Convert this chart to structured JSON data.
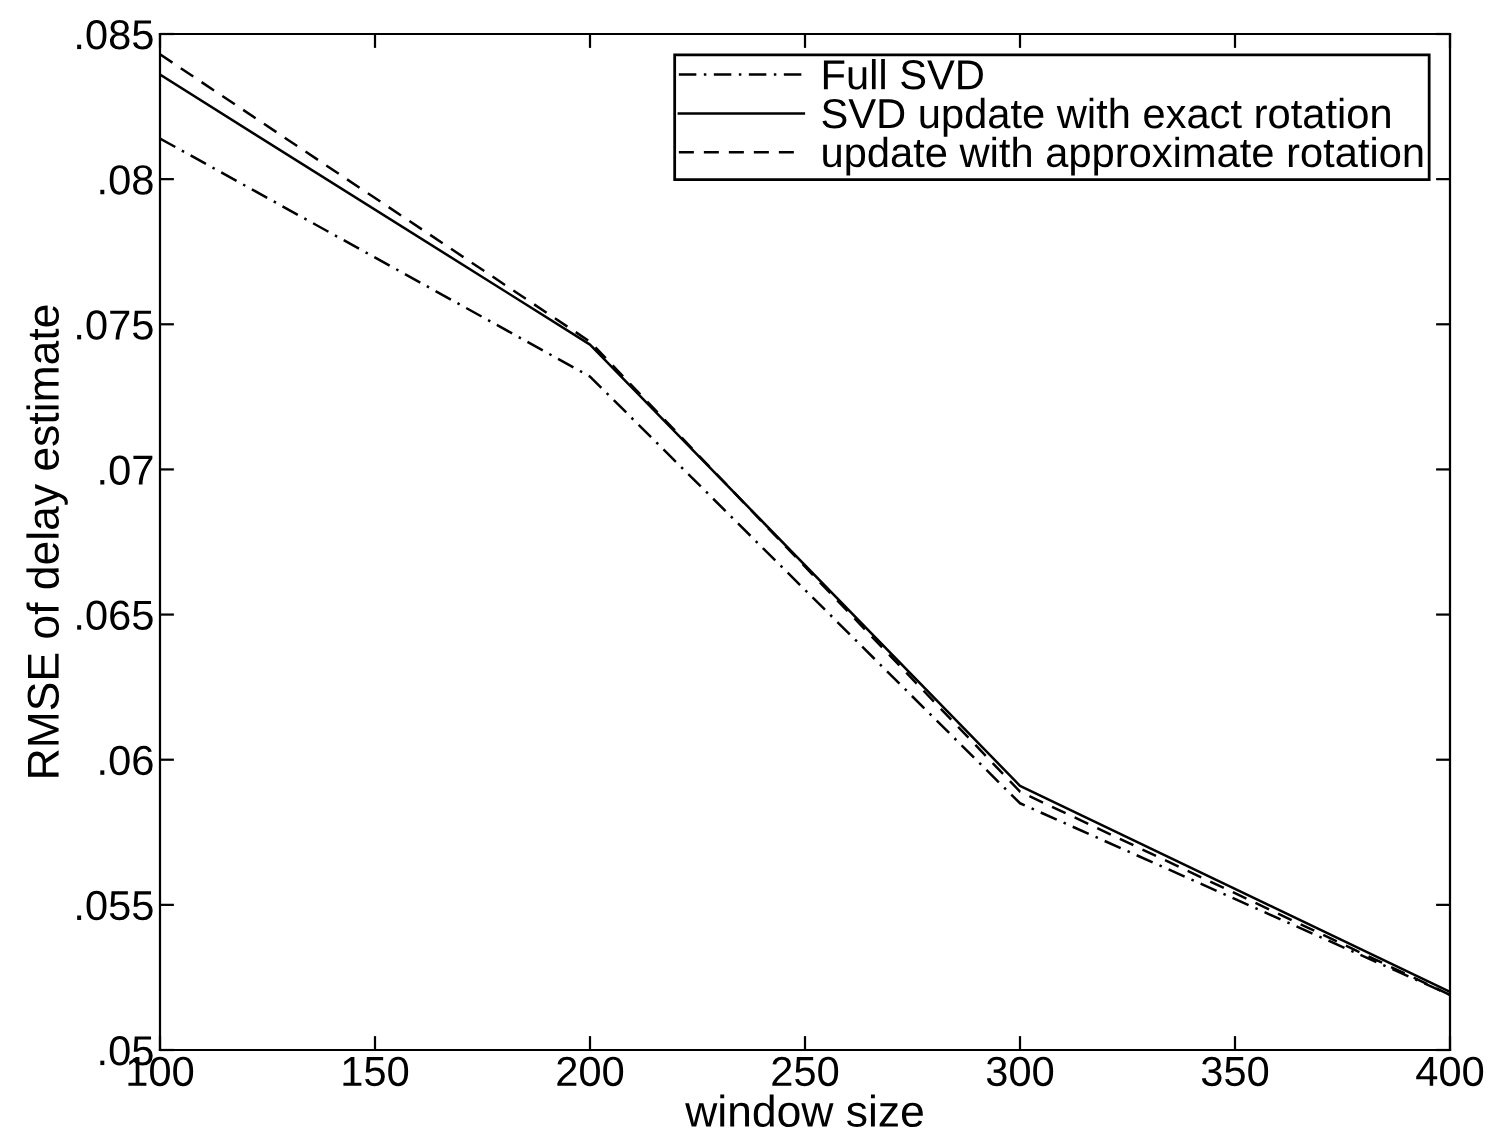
{
  "chart_data": {
    "type": "line",
    "xlabel": "window size",
    "ylabel": "RMSE of delay estimate",
    "x": [
      100,
      200,
      300,
      400
    ],
    "series": [
      {
        "name": "Full SVD",
        "color": "#000000",
        "line_style": "dashdot",
        "values": [
          0.0814,
          0.0732,
          0.0585,
          0.0519
        ]
      },
      {
        "name": "SVD update with exact rotation",
        "color": "#000000",
        "line_style": "solid",
        "values": [
          0.0836,
          0.0743,
          0.0591,
          0.052
        ]
      },
      {
        "name": "update with approximate rotation",
        "color": "#000000",
        "line_style": "dashed",
        "values": [
          0.0843,
          0.0744,
          0.0589,
          0.0519
        ]
      }
    ],
    "xlim": [
      100,
      400
    ],
    "xticks": [
      100,
      150,
      200,
      250,
      300,
      350,
      400
    ],
    "ylim": [
      0.05,
      0.085
    ],
    "yticks": [
      {
        "value": 0.05,
        "label": ".05"
      },
      {
        "value": 0.055,
        "label": ".055"
      },
      {
        "value": 0.06,
        "label": ".06"
      },
      {
        "value": 0.065,
        "label": ".065"
      },
      {
        "value": 0.07,
        "label": ".07"
      },
      {
        "value": 0.075,
        "label": ".075"
      },
      {
        "value": 0.08,
        "label": ".08"
      },
      {
        "value": 0.085,
        "label": ".085"
      }
    ],
    "grid": false,
    "legend": "top right"
  }
}
